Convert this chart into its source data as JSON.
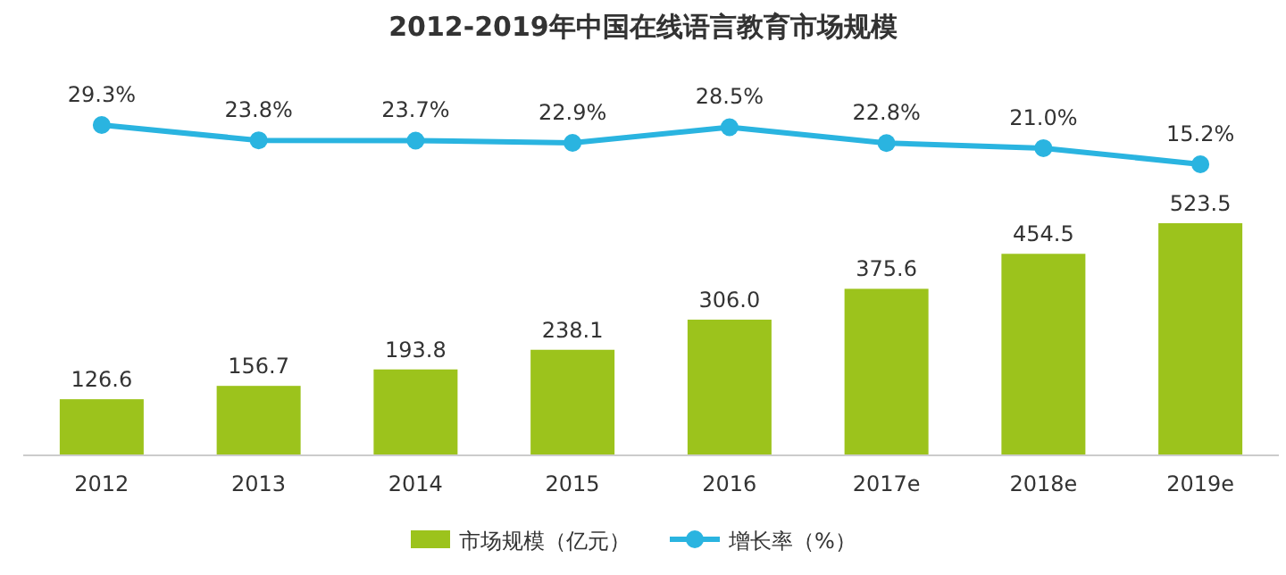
{
  "chart_data": [
    {
      "type": "line",
      "title": "2012-2019年中国在线语言教育市场规模",
      "categories": [
        null,
        null,
        null,
        null,
        null,
        null,
        null,
        null
      ],
      "legend": "bottom",
      "marker": "circle",
      "series": [
        {
          "name": "增长率（%）",
          "color": "#2ab4e0",
          "values": [
            29.3,
            23.8,
            23.7,
            22.9,
            28.5,
            22.8,
            21.0,
            15.2
          ],
          "value_labels": [
            "29.3%",
            "23.8%",
            "23.7%",
            "22.9%",
            "28.5%",
            "22.8%",
            "21.0%",
            "15.2%"
          ]
        }
      ]
    },
    {
      "type": "bar",
      "categories": [
        "2012",
        "2013",
        "2014",
        "2015",
        "2016",
        "2017e",
        "2018e",
        "2019e"
      ],
      "legend": "bottom",
      "series": [
        {
          "name": "市场规模（亿元）",
          "color": "#9cc31c",
          "values": [
            126.6,
            156.7,
            193.8,
            238.1,
            306.0,
            375.6,
            454.5,
            523.5
          ],
          "value_labels": [
            "126.6",
            "156.7",
            "193.8",
            "238.1",
            "306.0",
            "375.6",
            "454.5",
            "523.5"
          ]
        }
      ]
    }
  ]
}
